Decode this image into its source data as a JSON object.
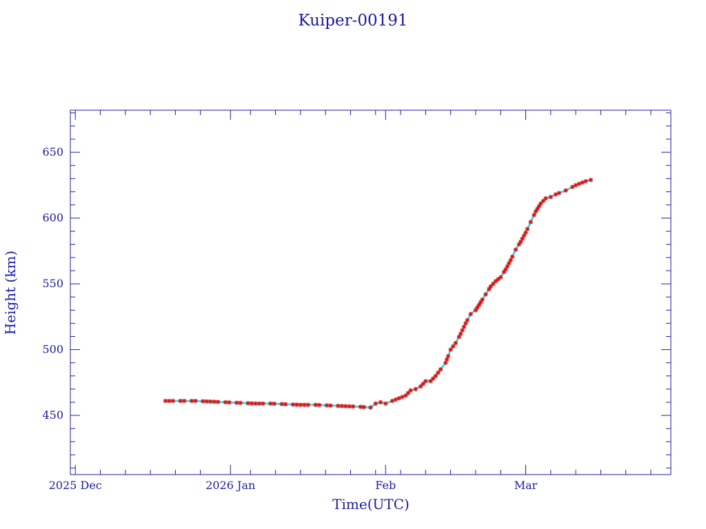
{
  "colors": {
    "axis": "#1a1aa0",
    "marker": "#dd1111",
    "line": "#33e0ee",
    "background": "#ffffff"
  },
  "chart_data": {
    "type": "scatter",
    "title": "Kuiper-00191",
    "xlabel": "Time(UTC)",
    "ylabel": "Height (km)",
    "x_axis_type": "date",
    "xlim": [
      "2025-11-26",
      "2026-03-26"
    ],
    "ylim": [
      405,
      682
    ],
    "x_ticks": [
      {
        "date": "2025-11-27",
        "label": "2025 Dec"
      },
      {
        "date": "2025-12-28",
        "label": "2026 Jan"
      },
      {
        "date": "2026-01-28",
        "label": "Feb"
      },
      {
        "date": "2026-02-25",
        "label": "Mar"
      }
    ],
    "y_ticks": [
      450,
      500,
      550,
      600,
      650
    ],
    "grid": false,
    "series": [
      {
        "marker": "asterisk",
        "connect_line": true,
        "points": [
          [
            "2025-12-15",
            461
          ],
          [
            "2025-12-18",
            461
          ],
          [
            "2025-12-21",
            461
          ],
          [
            "2025-12-24",
            460.5
          ],
          [
            "2025-12-27",
            460
          ],
          [
            "2025-12-30",
            459.5
          ],
          [
            "2026-01-02",
            459
          ],
          [
            "2026-01-05",
            459
          ],
          [
            "2026-01-08",
            458.5
          ],
          [
            "2026-01-11",
            458
          ],
          [
            "2026-01-14",
            458
          ],
          [
            "2026-01-17",
            457.5
          ],
          [
            "2026-01-20",
            457
          ],
          [
            "2026-01-23",
            456.5
          ],
          [
            "2026-01-25",
            456
          ],
          [
            "2026-01-26",
            459
          ],
          [
            "2026-01-27",
            460
          ],
          [
            "2026-01-28",
            459
          ],
          [
            "2026-01-30",
            462
          ],
          [
            "2026-02-01",
            465
          ],
          [
            "2026-02-02",
            469
          ],
          [
            "2026-02-03",
            470
          ],
          [
            "2026-02-04",
            472
          ],
          [
            "2026-02-05",
            476
          ],
          [
            "2026-02-06",
            476
          ],
          [
            "2026-02-07",
            480
          ],
          [
            "2026-02-08",
            485
          ],
          [
            "2026-02-09",
            490
          ],
          [
            "2026-02-10",
            500
          ],
          [
            "2026-02-11",
            505
          ],
          [
            "2026-02-12",
            512
          ],
          [
            "2026-02-13",
            520
          ],
          [
            "2026-02-14",
            527
          ],
          [
            "2026-02-15",
            530
          ],
          [
            "2026-02-16",
            536
          ],
          [
            "2026-02-17",
            542
          ],
          [
            "2026-02-18",
            548
          ],
          [
            "2026-02-19",
            552
          ],
          [
            "2026-02-20",
            555
          ],
          [
            "2026-02-21",
            561
          ],
          [
            "2026-02-22",
            568
          ],
          [
            "2026-02-23",
            576
          ],
          [
            "2026-02-24",
            582
          ],
          [
            "2026-02-25",
            589
          ],
          [
            "2026-02-26",
            597
          ],
          [
            "2026-02-27",
            605
          ],
          [
            "2026-02-28",
            611
          ],
          [
            "2026-03-01",
            615
          ],
          [
            "2026-03-02",
            616
          ],
          [
            "2026-03-03",
            618
          ],
          [
            "2026-03-05",
            621
          ],
          [
            "2026-03-07",
            625
          ],
          [
            "2026-03-09",
            628
          ],
          [
            "2026-03-10",
            629
          ]
        ]
      }
    ]
  }
}
